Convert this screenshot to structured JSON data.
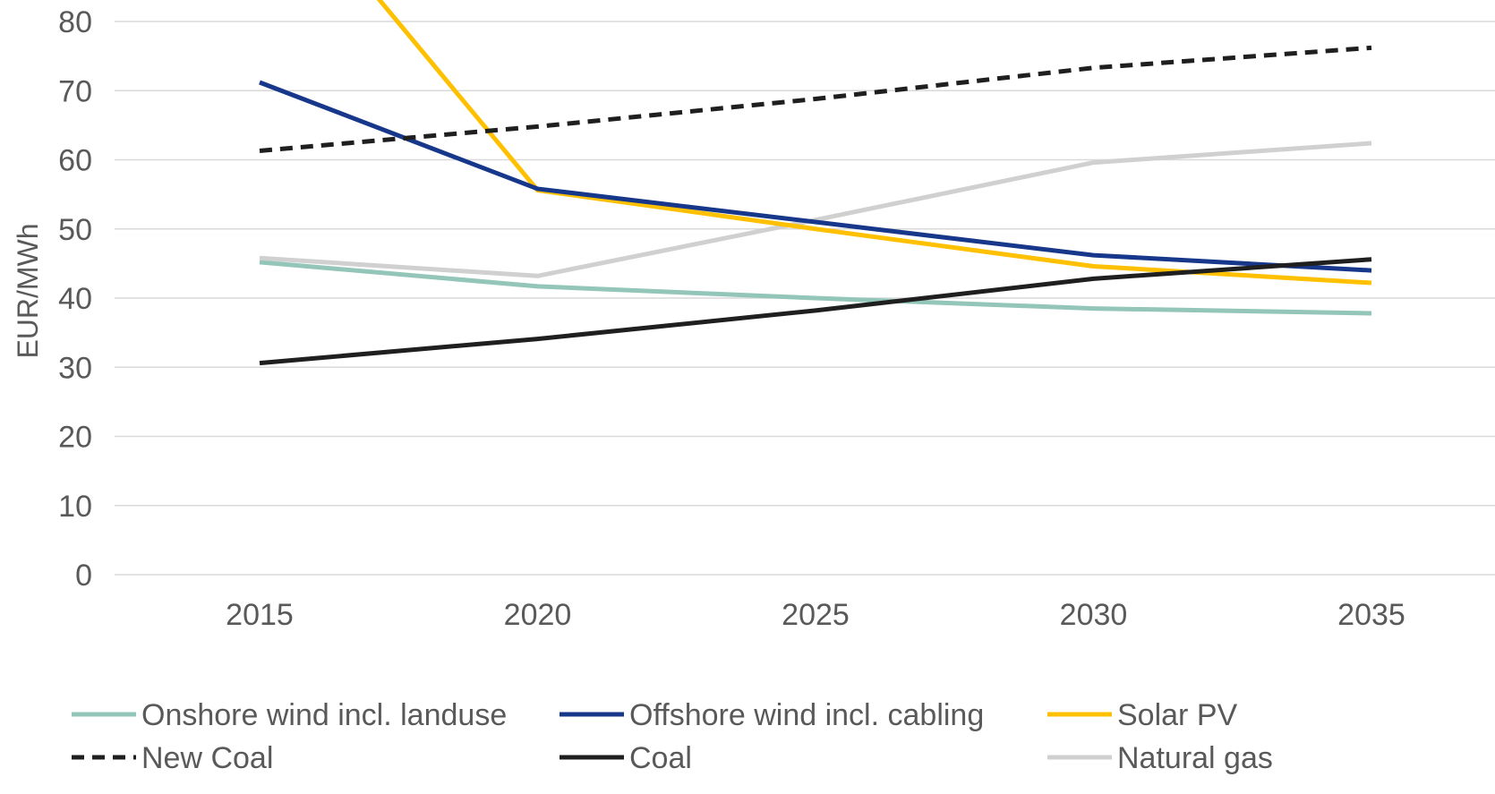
{
  "chart_data": {
    "type": "line",
    "title": "",
    "xlabel": "",
    "ylabel": "EUR/MWh",
    "x": [
      "2015",
      "2020",
      "2025",
      "2030",
      "2035"
    ],
    "ylim": [
      0,
      80
    ],
    "yticks": [
      "0",
      "10",
      "20",
      "30",
      "40",
      "50",
      "60",
      "70",
      "80"
    ],
    "grid": "horizontal",
    "legend_position": "bottom",
    "series": [
      {
        "name": "Onshore wind incl. landuse",
        "color": "#93c6b8",
        "dash": "solid",
        "values": [
          45.2,
          41.7,
          40.0,
          38.5,
          37.8
        ]
      },
      {
        "name": "Offshore wind incl. cabling",
        "color": "#17378a",
        "dash": "solid",
        "values": [
          71.2,
          55.8,
          51.0,
          46.2,
          44.0
        ]
      },
      {
        "name": "Solar PV",
        "color": "#ffc000",
        "dash": "solid",
        "values": [
          104.0,
          55.6,
          50.0,
          44.6,
          42.2
        ]
      },
      {
        "name": "New Coal",
        "color": "#1f1f1f",
        "dash": "dashed",
        "values": [
          61.3,
          64.8,
          68.8,
          73.3,
          76.2
        ]
      },
      {
        "name": "Coal",
        "color": "#1f1f1f",
        "dash": "solid",
        "values": [
          30.6,
          34.1,
          38.2,
          42.8,
          45.6
        ]
      },
      {
        "name": "Natural gas",
        "color": "#d0d0d0",
        "dash": "solid",
        "values": [
          45.8,
          43.2,
          51.3,
          59.6,
          62.4
        ]
      }
    ]
  }
}
